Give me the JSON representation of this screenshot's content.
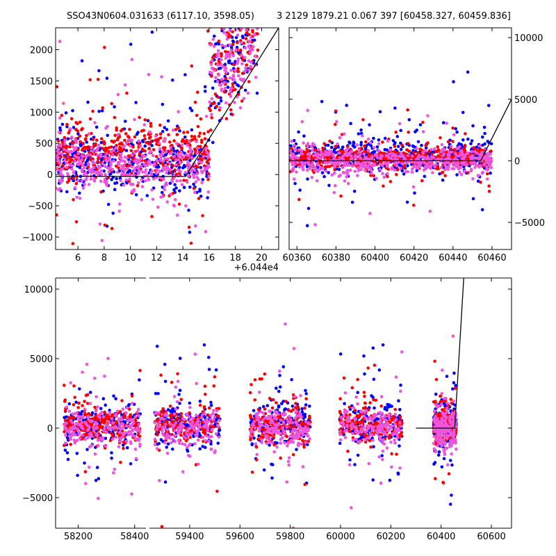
{
  "header": {
    "title_left": "SSO43N0604.031633 (6117.10, 3598.05)",
    "title_right": "3 2129 1879.21 0.067 397 [60458.327, 60459.836]"
  },
  "colors": {
    "series_a": "#0000ff",
    "series_b": "#ff0000",
    "series_c": "#ee55dd",
    "model_line": "#000000"
  },
  "chart_data": [
    {
      "id": "top-left",
      "type": "scatter",
      "xlim": [
        60444.3,
        60461.3
      ],
      "ylim": [
        -1200,
        2350
      ],
      "xticks": [
        6,
        8,
        10,
        12,
        14,
        16,
        18,
        20
      ],
      "yticks": [
        -1000,
        -500,
        0,
        500,
        1000,
        1500,
        2000
      ],
      "x_offset_label": "+6.044e4",
      "y_axis_side": "left",
      "series": [
        {
          "color": "#0000ff",
          "x_range": [
            60444.3,
            60459.8
          ],
          "y_center": 200,
          "y_spread": 650
        },
        {
          "color": "#ff0000",
          "x_range": [
            60444.3,
            60459.8
          ],
          "y_center": 350,
          "y_spread": 600
        },
        {
          "color": "#ee55dd",
          "x_range": [
            60444.3,
            60459.8
          ],
          "y_center": 150,
          "y_spread": 550
        }
      ],
      "model_line": {
        "x": [
          60444.3,
          60454.2,
          60461.3
        ],
        "y": [
          -30,
          -30,
          2350
        ]
      }
    },
    {
      "id": "top-right",
      "type": "scatter",
      "xlim": [
        60356,
        60470
      ],
      "ylim": [
        -7200,
        10800
      ],
      "xticks": [
        60360,
        60380,
        60400,
        60420,
        60440,
        60460
      ],
      "yticks": [
        -5000,
        0,
        5000,
        10000
      ],
      "y_axis_side": "right",
      "series": [
        {
          "color": "#0000ff",
          "x_range": [
            60356,
            60459.8
          ],
          "y_center": 400,
          "y_spread": 1700
        },
        {
          "color": "#ff0000",
          "x_range": [
            60356,
            60459.8
          ],
          "y_center": 300,
          "y_spread": 1200
        },
        {
          "color": "#ee55dd",
          "x_range": [
            60356,
            60459.8
          ],
          "y_center": 0,
          "y_spread": 1500
        }
      ],
      "model_line": {
        "x": [
          60356,
          60454.2,
          60470
        ],
        "y": [
          0,
          0,
          5000
        ]
      }
    },
    {
      "id": "bottom",
      "type": "scatter",
      "xlim": [
        58120,
        60680
      ],
      "ylim": [
        -7200,
        10800
      ],
      "xticks": [
        58200,
        58400,
        59400,
        59600,
        59800,
        60000,
        60200,
        60400,
        60600
      ],
      "yticks": [
        -5000,
        0,
        5000,
        10000
      ],
      "y_axis_side": "left",
      "seasons": [
        [
          58150,
          58420
        ],
        [
          59260,
          59520
        ],
        [
          59640,
          59880
        ],
        [
          59995,
          60245
        ],
        [
          60370,
          60460
        ]
      ],
      "series": [
        {
          "color": "#0000ff",
          "y_center": 200,
          "y_spread": 2200
        },
        {
          "color": "#ff0000",
          "y_center": 300,
          "y_spread": 1800
        },
        {
          "color": "#ee55dd",
          "y_center": 0,
          "y_spread": 2000
        }
      ],
      "model_line": {
        "x": [
          60300,
          60454.2,
          60490
        ],
        "y": [
          0,
          0,
          10800
        ]
      }
    }
  ]
}
